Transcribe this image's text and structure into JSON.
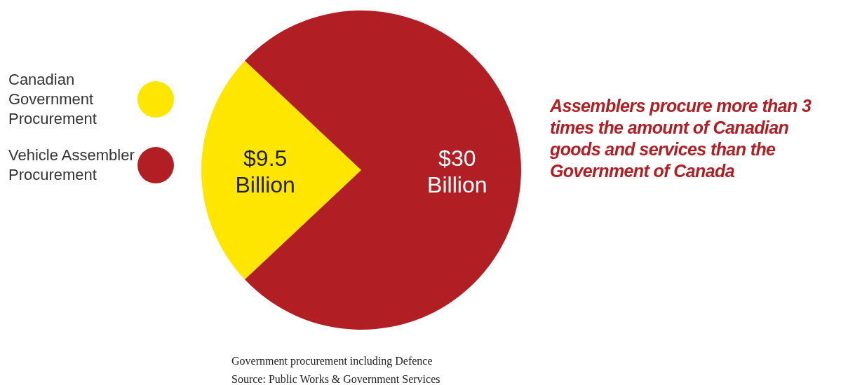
{
  "chart_data": {
    "type": "pie",
    "categories": [
      "Canadian Government Procurement",
      "Vehicle Assembler Procurement"
    ],
    "values": [
      9.5,
      30
    ],
    "colors": [
      "#ffe600",
      "#b11f24"
    ],
    "value_labels": [
      "$9.5 Billion",
      "$30 Billion"
    ],
    "legend": "left",
    "annotations": [
      "Assemblers procure more than 3 times the amount of Canadian goods and services than the Government of Canada",
      "Government procurement including Defence",
      "Source: Public Works & Government Services"
    ]
  }
}
